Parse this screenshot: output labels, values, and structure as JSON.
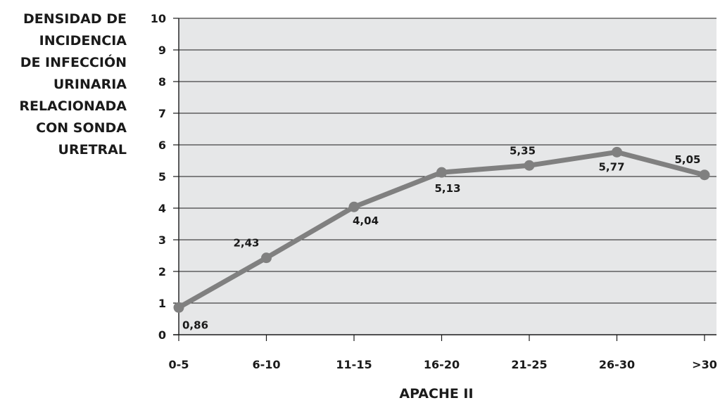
{
  "chart_data": {
    "type": "line",
    "title": "",
    "ylabel_lines": [
      "DENSIDAD DE",
      "INCIDENCIA",
      "DE INFECCIÓN",
      "URINARIA",
      "RELACIONADA",
      "CON SONDA",
      "URETRAL"
    ],
    "xlabel": "APACHE II",
    "categories": [
      "0-5",
      "6-10",
      "11-15",
      "16-20",
      "21-25",
      "26-30",
      ">30"
    ],
    "values": [
      0.86,
      2.43,
      4.04,
      5.13,
      5.35,
      5.77,
      5.05
    ],
    "data_labels": [
      "0,86",
      "2,43",
      "4,04",
      "5,13",
      "5,35",
      "5,77",
      "5,05"
    ],
    "ylim": [
      0,
      10
    ],
    "yticks": [
      "0",
      "1",
      "2",
      "3",
      "4",
      "5",
      "6",
      "7",
      "8",
      "9",
      "10"
    ],
    "grid": true,
    "colors": {
      "plot_bg": "#e6e7e8",
      "line": "#808080",
      "grid": "#1a1a1a"
    }
  }
}
